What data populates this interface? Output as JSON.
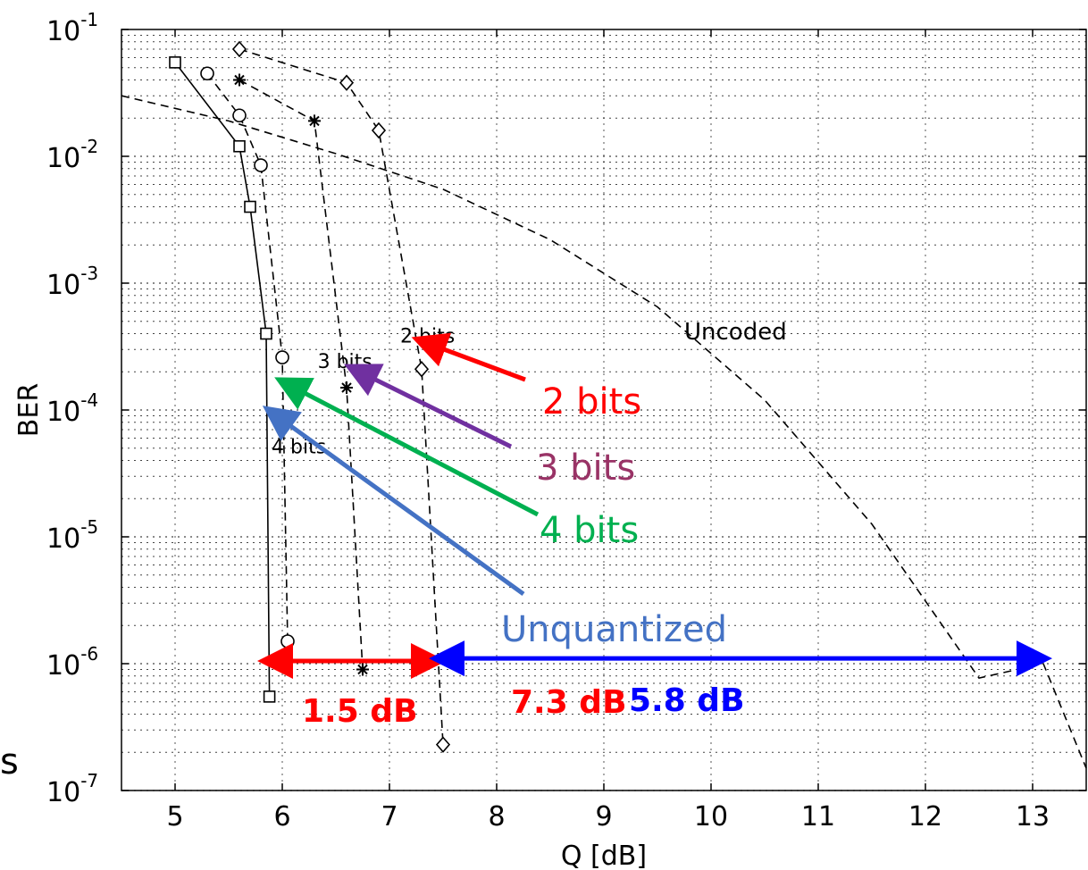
{
  "chart_data": {
    "type": "line",
    "xlabel": "Q [dB]",
    "ylabel": "BER",
    "xlim": [
      4.5,
      13.5
    ],
    "ylim": [
      1e-07,
      0.1
    ],
    "yscale": "log",
    "grid": "on (major and minor, dotted)",
    "x_ticks": [
      "5",
      "6",
      "7",
      "8",
      "9",
      "10",
      "11",
      "12",
      "13"
    ],
    "y_ticks": [
      {
        "base": "10",
        "exp": "-1",
        "value": 0.1
      },
      {
        "base": "10",
        "exp": "-2",
        "value": 0.01
      },
      {
        "base": "10",
        "exp": "-3",
        "value": 0.001
      },
      {
        "base": "10",
        "exp": "-4",
        "value": 0.0001
      },
      {
        "base": "10",
        "exp": "-5",
        "value": 1e-05
      },
      {
        "base": "10",
        "exp": "-6",
        "value": 1e-06
      },
      {
        "base": "10",
        "exp": "-7",
        "value": 1e-07
      }
    ],
    "series": [
      {
        "label": "Unquantized",
        "style": "solid",
        "marker": "square",
        "color": "#000000",
        "x": [
          5.0,
          5.6,
          5.7,
          5.85,
          5.88
        ],
        "y": [
          0.055,
          0.012,
          0.004,
          0.0004,
          5.5e-07
        ]
      },
      {
        "label": "4 bits",
        "style": "dashed",
        "marker": "circle",
        "color": "#000000",
        "x": [
          5.3,
          5.6,
          5.8,
          6.0,
          6.05
        ],
        "y": [
          0.045,
          0.021,
          0.0085,
          0.00026,
          1.5e-06
        ]
      },
      {
        "label": "3 bits",
        "style": "dashed",
        "marker": "star",
        "color": "#000000",
        "x": [
          5.6,
          6.3,
          6.6,
          6.75
        ],
        "y": [
          0.04,
          0.019,
          0.00015,
          9e-07
        ]
      },
      {
        "label": "2 bits",
        "style": "dashed",
        "marker": "diamond",
        "color": "#000000",
        "x": [
          5.6,
          6.6,
          6.9,
          7.3,
          7.5
        ],
        "y": [
          0.07,
          0.038,
          0.016,
          0.00021,
          2.3e-07
        ]
      },
      {
        "label": "Uncoded",
        "style": "dashed",
        "marker": "none",
        "color": "#000000",
        "x": [
          4.5,
          5.5,
          6.5,
          7.5,
          8.5,
          9.5,
          10.5,
          11.5,
          12.5,
          13.1,
          13.5
        ],
        "y": [
          0.03,
          0.019,
          0.0105,
          0.0055,
          0.0022,
          0.00065,
          0.00012,
          1.26e-05,
          7.7e-07,
          1e-06,
          1.5e-07
        ]
      }
    ],
    "plot_labels": [
      {
        "text": "2 bits",
        "x": 7.1,
        "y": 0.00034
      },
      {
        "text": "3 bits",
        "x": 6.33,
        "y": 0.000215
      },
      {
        "text": "4 bits",
        "x": 5.9,
        "y": 4.55e-05
      },
      {
        "text": "Uncoded",
        "x": 9.75,
        "y": 0.00036
      }
    ]
  },
  "annotations": {
    "callouts": [
      {
        "text": "2 bits",
        "color": "#ff0000"
      },
      {
        "text": "3 bits",
        "color": "#993366"
      },
      {
        "text": "4 bits",
        "color": "#00b050"
      },
      {
        "text": "Unquantized",
        "color": "#4472c4"
      }
    ],
    "gap_labels": [
      {
        "text": "1.5 dB",
        "color": "#ff0000"
      },
      {
        "text": "7.3 dB",
        "color": "#ff0000"
      },
      {
        "text": "5.8 dB",
        "color": "#0000ff"
      }
    ],
    "gap_arrows": [
      {
        "from_q": 5.85,
        "to_q": 7.45,
        "ber": 1.05e-06,
        "color": "#ff0000"
      },
      {
        "from_q": 7.45,
        "to_q": 13.1,
        "ber": 1.1e-06,
        "color": "#0000ff"
      }
    ],
    "margin_letter": "s"
  }
}
